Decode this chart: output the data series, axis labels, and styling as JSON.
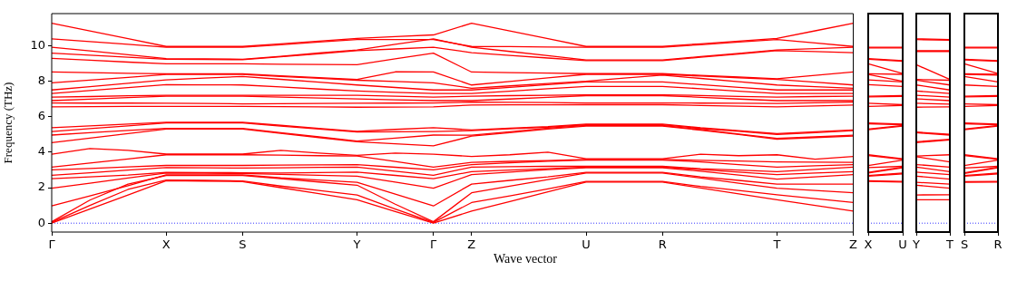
{
  "chart_data": [
    {
      "type": "line",
      "ylabel": "Frequency (THz)",
      "xlabel": "Wave vector",
      "marker": "none",
      "categories": [
        "Γ",
        null,
        null,
        "X",
        null,
        "S",
        null,
        null,
        "Y",
        null,
        "Γ",
        "Z",
        null,
        null,
        "U",
        null,
        "R",
        null,
        null,
        "T",
        null,
        "Z"
      ],
      "ylim": [
        -0.5,
        11.8
      ],
      "yticks": [
        0,
        2,
        4,
        6,
        8,
        10
      ],
      "ref_lines": [
        {
          "axis": "y",
          "value": 0,
          "color": "#0000ff",
          "line_style": "dotted"
        }
      ],
      "series": [
        {
          "color": "#ff0000",
          "values": [
            0,
            0.8,
            1.59,
            2.39,
            2.37,
            2.34,
            2.0,
            1.66,
            1.32,
            0.66,
            0,
            0.68,
            1.22,
            1.77,
            2.31,
            2.31,
            2.31,
            1.98,
            1.65,
            1.32,
            1.0,
            0.68
          ]
        },
        {
          "color": "#ff0000",
          "values": [
            0.04,
            1.0,
            1.9,
            2.43,
            2.41,
            2.38,
            2.09,
            1.84,
            1.59,
            0.8,
            0.04,
            1.16,
            1.54,
            1.93,
            2.35,
            2.35,
            2.35,
            2.07,
            1.84,
            1.6,
            1.38,
            1.16
          ]
        },
        {
          "color": "#ff0000",
          "values": [
            0.08,
            1.3,
            2.2,
            2.68,
            2.68,
            2.68,
            2.5,
            2.32,
            2.14,
            1.07,
            0.08,
            1.71,
            2.08,
            2.45,
            2.82,
            2.82,
            2.82,
            2.54,
            2.25,
            1.97,
            1.84,
            1.71
          ]
        },
        {
          "color": "#ff0000",
          "values": [
            0.97,
            1.54,
            2.11,
            2.72,
            2.72,
            2.72,
            2.55,
            2.43,
            2.3,
            1.64,
            0.97,
            2.2,
            2.41,
            2.61,
            2.86,
            2.86,
            2.86,
            2.61,
            2.41,
            2.2,
            2.2,
            2.2
          ]
        },
        {
          "color": "#ff0000",
          "values": [
            1.97,
            2.25,
            2.54,
            2.82,
            2.81,
            2.8,
            2.75,
            2.7,
            2.65,
            2.31,
            1.97,
            2.73,
            2.87,
            3.02,
            3.12,
            3.12,
            3.12,
            2.93,
            2.71,
            2.48,
            2.61,
            2.73
          ]
        },
        {
          "color": "#ff0000",
          "values": [
            2.5,
            2.61,
            2.71,
            2.86,
            2.85,
            2.84,
            2.82,
            2.85,
            2.87,
            2.69,
            2.5,
            2.9,
            2.99,
            3.07,
            3.16,
            3.16,
            3.16,
            3.02,
            2.87,
            2.73,
            2.82,
            2.9
          ]
        },
        {
          "color": "#ff0000",
          "values": [
            2.7,
            2.84,
            2.99,
            3.13,
            3.12,
            3.1,
            3.12,
            3.14,
            3.16,
            2.93,
            2.7,
            3.16,
            3.18,
            3.2,
            3.2,
            3.2,
            3.2,
            3.07,
            2.99,
            2.9,
            3.03,
            3.16
          ]
        },
        {
          "color": "#ff0000",
          "values": [
            3.0,
            3.08,
            3.17,
            3.25,
            3.25,
            3.25,
            3.27,
            3.28,
            3.3,
            3.15,
            3.0,
            3.3,
            3.4,
            3.49,
            3.55,
            3.55,
            3.55,
            3.45,
            3.3,
            3.16,
            3.23,
            3.3
          ]
        },
        {
          "color": "#ff0000",
          "values": [
            3.16,
            3.39,
            3.62,
            3.85,
            3.85,
            3.85,
            3.83,
            3.8,
            3.78,
            3.47,
            3.16,
            3.42,
            3.48,
            3.53,
            3.59,
            3.59,
            3.59,
            3.54,
            3.5,
            3.45,
            3.44,
            3.42
          ]
        },
        {
          "color": "#ff0000",
          "values": [
            3.88,
            4.2,
            4.1,
            3.89,
            3.89,
            3.89,
            4.1,
            3.95,
            3.82,
            3.95,
            3.88,
            3.76,
            3.85,
            4.0,
            3.63,
            3.63,
            3.63,
            3.88,
            3.8,
            3.85,
            3.6,
            3.76
          ]
        },
        {
          "color": "#ff0000",
          "values": [
            4.53,
            4.79,
            5.04,
            5.3,
            5.3,
            5.3,
            5.06,
            4.82,
            4.58,
            4.47,
            4.35,
            4.9,
            5.1,
            5.3,
            5.46,
            5.46,
            5.46,
            5.24,
            4.99,
            4.73,
            4.82,
            4.9
          ]
        },
        {
          "color": "#ff0000",
          "values": [
            4.96,
            5.1,
            5.22,
            5.34,
            5.34,
            5.34,
            5.1,
            4.86,
            4.62,
            4.79,
            4.96,
            4.95,
            5.15,
            5.35,
            5.5,
            5.5,
            5.5,
            5.27,
            5.02,
            4.78,
            4.86,
            4.95
          ]
        },
        {
          "color": "#ff0000",
          "values": [
            5.16,
            5.32,
            5.48,
            5.64,
            5.64,
            5.64,
            5.47,
            5.3,
            5.13,
            5.15,
            5.16,
            5.21,
            5.31,
            5.4,
            5.54,
            5.54,
            5.54,
            5.33,
            5.17,
            5.0,
            5.1,
            5.21
          ]
        },
        {
          "color": "#ff0000",
          "values": [
            5.38,
            5.48,
            5.58,
            5.68,
            5.68,
            5.68,
            5.51,
            5.34,
            5.17,
            5.28,
            5.38,
            5.25,
            5.35,
            5.44,
            5.58,
            5.58,
            5.58,
            5.37,
            5.21,
            5.04,
            5.15,
            5.25
          ]
        },
        {
          "color": "#ff0000",
          "values": [
            6.55,
            6.56,
            6.57,
            6.58,
            6.58,
            6.58,
            6.56,
            6.55,
            6.53,
            6.54,
            6.55,
            6.65,
            6.66,
            6.66,
            6.67,
            6.67,
            6.67,
            6.63,
            6.59,
            6.55,
            6.6,
            6.65
          ]
        },
        {
          "color": "#ff0000",
          "values": [
            6.77,
            6.76,
            6.76,
            6.75,
            6.74,
            6.72,
            6.73,
            6.74,
            6.75,
            6.76,
            6.77,
            6.82,
            6.8,
            6.79,
            6.77,
            6.77,
            6.77,
            6.76,
            6.75,
            6.74,
            6.78,
            6.82
          ]
        },
        {
          "color": "#ff0000",
          "values": [
            6.9,
            6.98,
            7.07,
            7.15,
            7.15,
            7.15,
            7.1,
            7.05,
            7.0,
            6.95,
            6.9,
            6.9,
            6.99,
            7.09,
            7.18,
            7.18,
            7.18,
            7.09,
            6.99,
            6.9,
            6.9,
            6.9
          ]
        },
        {
          "color": "#ff0000",
          "values": [
            7.1,
            7.13,
            7.17,
            7.2,
            7.2,
            7.2,
            7.2,
            7.2,
            7.2,
            7.15,
            7.1,
            7.15,
            7.18,
            7.2,
            7.23,
            7.23,
            7.23,
            7.19,
            7.14,
            7.1,
            7.13,
            7.15
          ]
        },
        {
          "color": "#ff0000",
          "values": [
            7.3,
            7.47,
            7.63,
            7.8,
            7.79,
            7.78,
            7.67,
            7.55,
            7.44,
            7.37,
            7.3,
            7.3,
            7.43,
            7.57,
            7.7,
            7.7,
            7.7,
            7.57,
            7.43,
            7.3,
            7.3,
            7.3
          ]
        },
        {
          "color": "#ff0000",
          "values": [
            7.5,
            7.69,
            7.88,
            8.07,
            8.17,
            8.26,
            8.1,
            7.94,
            7.78,
            7.64,
            7.5,
            7.5,
            7.65,
            7.8,
            7.95,
            7.95,
            7.95,
            7.8,
            7.65,
            7.5,
            7.5,
            7.5
          ]
        },
        {
          "color": "#ff0000",
          "values": [
            7.9,
            8.06,
            8.21,
            8.37,
            8.37,
            8.37,
            8.26,
            8.16,
            8.05,
            7.98,
            7.9,
            7.6,
            7.73,
            7.86,
            7.99,
            8.17,
            8.34,
            8.15,
            7.97,
            7.78,
            7.69,
            7.6
          ]
        },
        {
          "color": "#ff0000",
          "values": [
            8.51,
            8.48,
            8.44,
            8.41,
            8.41,
            8.41,
            8.3,
            8.2,
            8.09,
            8.52,
            8.51,
            7.78,
            7.98,
            8.18,
            8.38,
            8.38,
            8.38,
            8.28,
            8.19,
            8.09,
            7.94,
            7.78
          ]
        },
        {
          "color": "#ff0000",
          "values": [
            9.28,
            9.18,
            9.07,
            8.97,
            8.97,
            8.97,
            8.95,
            8.94,
            8.92,
            9.25,
            9.57,
            8.51,
            8.48,
            8.45,
            8.42,
            8.42,
            8.42,
            8.32,
            8.23,
            8.13,
            8.32,
            8.51
          ]
        },
        {
          "color": "#ff0000",
          "values": [
            9.57,
            9.46,
            9.34,
            9.23,
            9.22,
            9.2,
            9.37,
            9.54,
            9.71,
            9.81,
            9.91,
            9.6,
            9.45,
            9.3,
            9.15,
            9.15,
            9.15,
            9.34,
            9.52,
            9.71,
            9.66,
            9.6
          ]
        },
        {
          "color": "#ff0000",
          "values": [
            9.91,
            9.7,
            9.48,
            9.27,
            9.25,
            9.23,
            9.4,
            9.58,
            9.75,
            10.07,
            10.38,
            9.91,
            9.67,
            9.43,
            9.19,
            9.19,
            9.19,
            9.38,
            9.56,
            9.75,
            9.83,
            9.91
          ]
        },
        {
          "color": "#ff0000",
          "values": [
            10.38,
            10.22,
            10.07,
            9.91,
            9.91,
            9.91,
            10.05,
            10.2,
            10.34,
            10.34,
            10.34,
            9.95,
            9.94,
            9.92,
            9.91,
            9.91,
            9.91,
            10.05,
            10.2,
            10.34,
            10.15,
            9.95
          ]
        },
        {
          "color": "#ff0000",
          "values": [
            11.26,
            10.82,
            10.39,
            9.95,
            9.95,
            9.95,
            10.1,
            10.25,
            10.4,
            10.5,
            10.6,
            11.26,
            10.82,
            10.39,
            9.95,
            9.95,
            9.95,
            10.1,
            10.25,
            10.4,
            10.83,
            11.26
          ]
        }
      ]
    },
    {
      "type": "line",
      "marker": "none",
      "tick_labels": "x",
      "categories": [
        "X",
        "U"
      ],
      "ylim": [
        -0.5,
        11.8
      ],
      "yticks": [
        0,
        2,
        4,
        6,
        8,
        10
      ],
      "ref_lines": [
        {
          "axis": "y",
          "value": 0,
          "color": "#0000ff",
          "line_style": "dotted"
        }
      ],
      "series": [
        {
          "color": "#ff0000",
          "values": [
            2.35,
            2.31
          ]
        },
        {
          "color": "#ff0000",
          "values": [
            2.39,
            2.35
          ]
        },
        {
          "color": "#ff0000",
          "values": [
            2.64,
            2.78
          ]
        },
        {
          "color": "#ff0000",
          "values": [
            2.68,
            2.82
          ]
        },
        {
          "color": "#ff0000",
          "values": [
            2.82,
            3.12
          ]
        },
        {
          "color": "#ff0000",
          "values": [
            2.86,
            3.16
          ]
        },
        {
          "color": "#ff0000",
          "values": [
            3.13,
            3.2
          ]
        },
        {
          "color": "#ff0000",
          "values": [
            3.25,
            3.55
          ]
        },
        {
          "color": "#ff0000",
          "values": [
            3.81,
            3.59
          ]
        },
        {
          "color": "#ff0000",
          "values": [
            3.85,
            3.63
          ]
        },
        {
          "color": "#ff0000",
          "values": [
            5.26,
            5.46
          ]
        },
        {
          "color": "#ff0000",
          "values": [
            5.3,
            5.5
          ]
        },
        {
          "color": "#ff0000",
          "values": [
            5.6,
            5.54
          ]
        },
        {
          "color": "#ff0000",
          "values": [
            5.64,
            5.58
          ]
        },
        {
          "color": "#ff0000",
          "values": [
            6.58,
            6.63
          ]
        },
        {
          "color": "#ff0000",
          "values": [
            6.75,
            6.67
          ]
        },
        {
          "color": "#ff0000",
          "values": [
            7.11,
            7.14
          ]
        },
        {
          "color": "#ff0000",
          "values": [
            7.15,
            7.18
          ]
        },
        {
          "color": "#ff0000",
          "values": [
            7.8,
            7.7
          ]
        },
        {
          "color": "#ff0000",
          "values": [
            8.07,
            7.95
          ]
        },
        {
          "color": "#ff0000",
          "values": [
            8.37,
            7.99
          ]
        },
        {
          "color": "#ff0000",
          "values": [
            8.41,
            8.38
          ]
        },
        {
          "color": "#ff0000",
          "values": [
            8.97,
            8.42
          ]
        },
        {
          "color": "#ff0000",
          "values": [
            9.23,
            9.11
          ]
        },
        {
          "color": "#ff0000",
          "values": [
            9.27,
            9.15
          ]
        },
        {
          "color": "#ff0000",
          "values": [
            9.87,
            9.87
          ]
        },
        {
          "color": "#ff0000",
          "values": [
            9.91,
            9.91
          ]
        }
      ]
    },
    {
      "type": "line",
      "marker": "none",
      "tick_labels": "x",
      "categories": [
        "Y",
        "T"
      ],
      "ylim": [
        -0.5,
        11.8
      ],
      "yticks": [
        0,
        2,
        4,
        6,
        8,
        10
      ],
      "ref_lines": [
        {
          "axis": "y",
          "value": 0,
          "color": "#0000ff",
          "line_style": "dotted"
        }
      ],
      "series": [
        {
          "color": "#ff0000",
          "values": [
            1.32,
            1.32
          ]
        },
        {
          "color": "#ff0000",
          "values": [
            1.59,
            1.6
          ]
        },
        {
          "color": "#ff0000",
          "values": [
            2.14,
            1.97
          ]
        },
        {
          "color": "#ff0000",
          "values": [
            2.3,
            2.2
          ]
        },
        {
          "color": "#ff0000",
          "values": [
            2.65,
            2.48
          ]
        },
        {
          "color": "#ff0000",
          "values": [
            2.87,
            2.73
          ]
        },
        {
          "color": "#ff0000",
          "values": [
            3.16,
            2.9
          ]
        },
        {
          "color": "#ff0000",
          "values": [
            3.3,
            3.16
          ]
        },
        {
          "color": "#ff0000",
          "values": [
            3.74,
            3.45
          ]
        },
        {
          "color": "#ff0000",
          "values": [
            3.78,
            3.85
          ]
        },
        {
          "color": "#ff0000",
          "values": [
            4.54,
            4.69
          ]
        },
        {
          "color": "#ff0000",
          "values": [
            4.58,
            4.73
          ]
        },
        {
          "color": "#ff0000",
          "values": [
            5.09,
            4.96
          ]
        },
        {
          "color": "#ff0000",
          "values": [
            5.13,
            5.0
          ]
        },
        {
          "color": "#ff0000",
          "values": [
            6.53,
            6.55
          ]
        },
        {
          "color": "#ff0000",
          "values": [
            6.75,
            6.7
          ]
        },
        {
          "color": "#ff0000",
          "values": [
            7.0,
            6.9
          ]
        },
        {
          "color": "#ff0000",
          "values": [
            7.2,
            7.1
          ]
        },
        {
          "color": "#ff0000",
          "values": [
            7.44,
            7.3
          ]
        },
        {
          "color": "#ff0000",
          "values": [
            7.78,
            7.5
          ]
        },
        {
          "color": "#ff0000",
          "values": [
            8.05,
            7.78
          ]
        },
        {
          "color": "#ff0000",
          "values": [
            8.09,
            8.05
          ]
        },
        {
          "color": "#ff0000",
          "values": [
            8.92,
            8.09
          ]
        },
        {
          "color": "#ff0000",
          "values": [
            9.67,
            9.67
          ]
        },
        {
          "color": "#ff0000",
          "values": [
            9.71,
            9.71
          ]
        },
        {
          "color": "#ff0000",
          "values": [
            10.34,
            10.3
          ]
        },
        {
          "color": "#ff0000",
          "values": [
            10.38,
            10.34
          ]
        }
      ]
    },
    {
      "type": "line",
      "marker": "none",
      "tick_labels": "x",
      "categories": [
        "S",
        "R"
      ],
      "ylim": [
        -0.5,
        11.8
      ],
      "yticks": [
        0,
        2,
        4,
        6,
        8,
        10
      ],
      "ref_lines": [
        {
          "axis": "y",
          "value": 0,
          "color": "#0000ff",
          "line_style": "dotted"
        }
      ],
      "series": [
        {
          "color": "#ff0000",
          "values": [
            2.3,
            2.31
          ]
        },
        {
          "color": "#ff0000",
          "values": [
            2.34,
            2.35
          ]
        },
        {
          "color": "#ff0000",
          "values": [
            2.64,
            2.78
          ]
        },
        {
          "color": "#ff0000",
          "values": [
            2.68,
            2.82
          ]
        },
        {
          "color": "#ff0000",
          "values": [
            2.8,
            3.12
          ]
        },
        {
          "color": "#ff0000",
          "values": [
            2.84,
            3.16
          ]
        },
        {
          "color": "#ff0000",
          "values": [
            3.1,
            3.2
          ]
        },
        {
          "color": "#ff0000",
          "values": [
            3.25,
            3.55
          ]
        },
        {
          "color": "#ff0000",
          "values": [
            3.81,
            3.59
          ]
        },
        {
          "color": "#ff0000",
          "values": [
            3.85,
            3.63
          ]
        },
        {
          "color": "#ff0000",
          "values": [
            5.26,
            5.46
          ]
        },
        {
          "color": "#ff0000",
          "values": [
            5.3,
            5.5
          ]
        },
        {
          "color": "#ff0000",
          "values": [
            5.6,
            5.54
          ]
        },
        {
          "color": "#ff0000",
          "values": [
            5.64,
            5.58
          ]
        },
        {
          "color": "#ff0000",
          "values": [
            6.58,
            6.63
          ]
        },
        {
          "color": "#ff0000",
          "values": [
            6.72,
            6.67
          ]
        },
        {
          "color": "#ff0000",
          "values": [
            7.11,
            7.14
          ]
        },
        {
          "color": "#ff0000",
          "values": [
            7.15,
            7.18
          ]
        },
        {
          "color": "#ff0000",
          "values": [
            7.78,
            7.7
          ]
        },
        {
          "color": "#ff0000",
          "values": [
            8.26,
            7.95
          ]
        },
        {
          "color": "#ff0000",
          "values": [
            8.37,
            8.34
          ]
        },
        {
          "color": "#ff0000",
          "values": [
            8.41,
            8.38
          ]
        },
        {
          "color": "#ff0000",
          "values": [
            8.97,
            8.42
          ]
        },
        {
          "color": "#ff0000",
          "values": [
            9.19,
            9.11
          ]
        },
        {
          "color": "#ff0000",
          "values": [
            9.23,
            9.15
          ]
        },
        {
          "color": "#ff0000",
          "values": [
            9.87,
            9.87
          ]
        },
        {
          "color": "#ff0000",
          "values": [
            9.91,
            9.91
          ]
        }
      ]
    }
  ]
}
